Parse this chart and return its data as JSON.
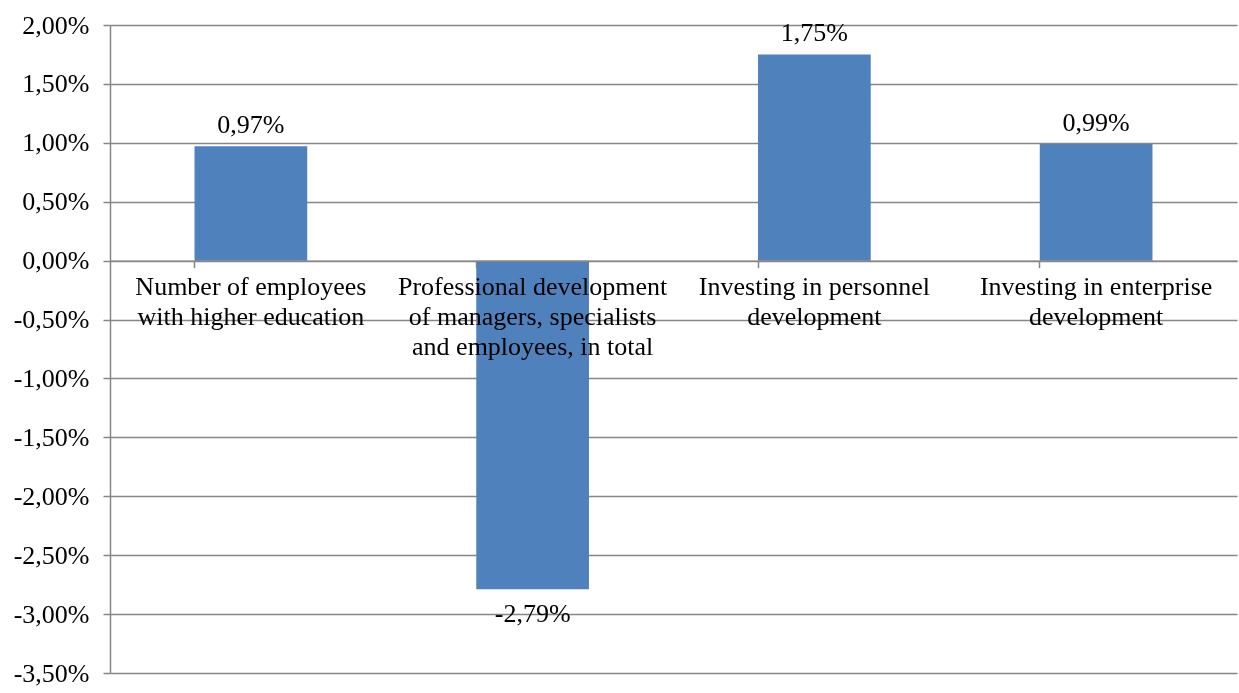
{
  "chart_data": {
    "type": "bar",
    "categories": [
      "Number of employees with higher education",
      "Professional development of managers, specialists and employees, in total",
      "Investing in personnel development",
      "Investing in enterprise development"
    ],
    "values": [
      0.97,
      -2.79,
      1.75,
      0.99
    ],
    "value_labels": [
      "0,97%",
      "-2,79%",
      "1,75%",
      "0,99%"
    ],
    "color": "#4f81bd",
    "ylim": [
      -3.5,
      2
    ],
    "yticks": [
      {
        "value": -3.5,
        "label": "-3,50%"
      },
      {
        "value": -3,
        "label": "-3,00%"
      },
      {
        "value": -2.5,
        "label": "-2,50%"
      },
      {
        "value": -2,
        "label": "-2,00%"
      },
      {
        "value": -1.5,
        "label": "-1,50%"
      },
      {
        "value": -1,
        "label": "-1,00%"
      },
      {
        "value": -0.5,
        "label": "-0,50%"
      },
      {
        "value": 0,
        "label": "0,00%"
      },
      {
        "value": 0.5,
        "label": "0,50%"
      },
      {
        "value": 1,
        "label": "1,00%"
      },
      {
        "value": 1.5,
        "label": "1,50%"
      },
      {
        "value": 2,
        "label": "2,00%"
      }
    ],
    "grid": "y"
  }
}
